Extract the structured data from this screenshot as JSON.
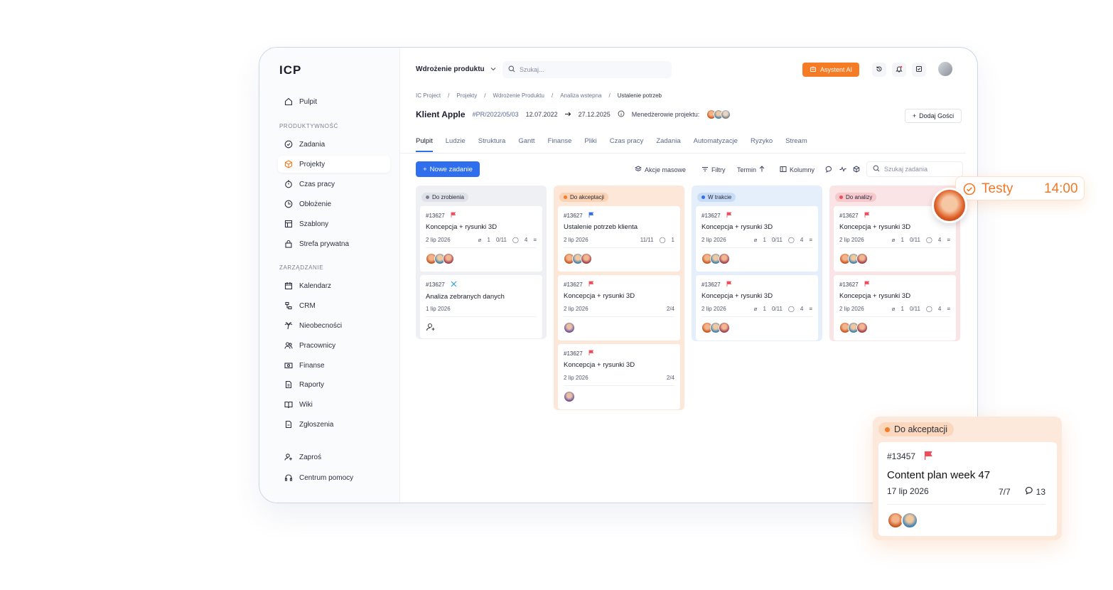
{
  "app": {
    "logo": "ICP"
  },
  "sidebar": {
    "top_item": "Pulpit",
    "section1": "PRODUKTYWNOŚĆ",
    "productivity": [
      "Zadania",
      "Projekty",
      "Czas pracy",
      "Obłożenie",
      "Szablony",
      "Strefa prywatna"
    ],
    "section2": "ZARZĄDZANIE",
    "management": [
      "Kalendarz",
      "CRM",
      "Nieobecności",
      "Pracownicy",
      "Finanse",
      "Raporty",
      "Wiki",
      "Zgłoszenia"
    ],
    "bottom": [
      "Zaproś",
      "Centrum pomocy"
    ]
  },
  "topbar": {
    "project": "Wdrożenie produktu",
    "search_placeholder": "Szukaj...",
    "ai_button": "Asystent AI"
  },
  "breadcrumb": [
    "IC Project",
    "Projekty",
    "Wdrożenie Produktu",
    "Analiza wstepna",
    "Ustalenie potrzeb"
  ],
  "header": {
    "client": "Klient Apple",
    "code": "#PR/2022/05/03",
    "date_start": "12.07.2022",
    "date_end": "27.12.2025",
    "managers_label": "Menedżerowie projektu:",
    "add_guest": "Dodaj Gości"
  },
  "tabs": [
    "Pulpit",
    "Ludzie",
    "Struktura",
    "Gantt",
    "Finanse",
    "Pliki",
    "Czas pracy",
    "Zadania",
    "Automatyzacje",
    "Ryzyko",
    "Stream"
  ],
  "toolbar": {
    "new_task": "Nowe zadanie",
    "bulk": "Akcje masowe",
    "filters": "Filtry",
    "sort": "Termin",
    "columns": "Kolumny",
    "search_placeholder": "Szukaj zadania"
  },
  "columns": [
    {
      "status": "Do zrobienia",
      "color": "#9aa0ad",
      "cards": [
        {
          "id": "#13627",
          "title": "Koncepcja + rysunki 3D",
          "date": "2 lip 2026",
          "attachments": "1",
          "progress": "0/11",
          "comments": "4"
        },
        {
          "id": "#13627",
          "title": "Analiza zebranych danych",
          "date": "1 lip 2026"
        }
      ]
    },
    {
      "status": "Do akceptacji",
      "color": "#f57c24",
      "cards": [
        {
          "id": "#13627",
          "title": "Ustalenie potrzeb klienta",
          "date": "2 lip 2026",
          "progress": "11/11",
          "comments": "1"
        },
        {
          "id": "#13627",
          "title": "Koncepcja + rysunki 3D",
          "date": "2 lip 2026",
          "progress": "2/4"
        },
        {
          "id": "#13627",
          "title": "Koncepcja + rysunki 3D",
          "date": "2 lip 2026",
          "progress": "2/4"
        }
      ]
    },
    {
      "status": "W trakcie",
      "color": "#2f6fed",
      "cards": [
        {
          "id": "#13627",
          "title": "Koncepcja + rysunki 3D",
          "date": "2 lip 2026",
          "attachments": "1",
          "progress": "0/11",
          "comments": "4"
        },
        {
          "id": "#13627",
          "title": "Koncepcja + rysunki 3D",
          "date": "2 lip 2026",
          "attachments": "1",
          "progress": "0/11",
          "comments": "4"
        }
      ]
    },
    {
      "status": "Do analizy",
      "color": "#ef4d5a",
      "cards": [
        {
          "id": "#13627",
          "title": "Koncepcja + rysunki 3D",
          "date": "2 lip 2026",
          "attachments": "1",
          "progress": "0/11",
          "comments": "4"
        },
        {
          "id": "#13627",
          "title": "Koncepcja + rysunki 3D",
          "date": "2 lip 2026",
          "attachments": "1",
          "progress": "0/11",
          "comments": "4"
        }
      ]
    }
  ],
  "testy": {
    "label": "Testy",
    "time": "14:00"
  },
  "featured": {
    "status": "Do akceptacji",
    "id": "#13457",
    "title": "Content plan week 47",
    "date": "17 lip 2026",
    "progress": "7/7",
    "comments": "13"
  }
}
